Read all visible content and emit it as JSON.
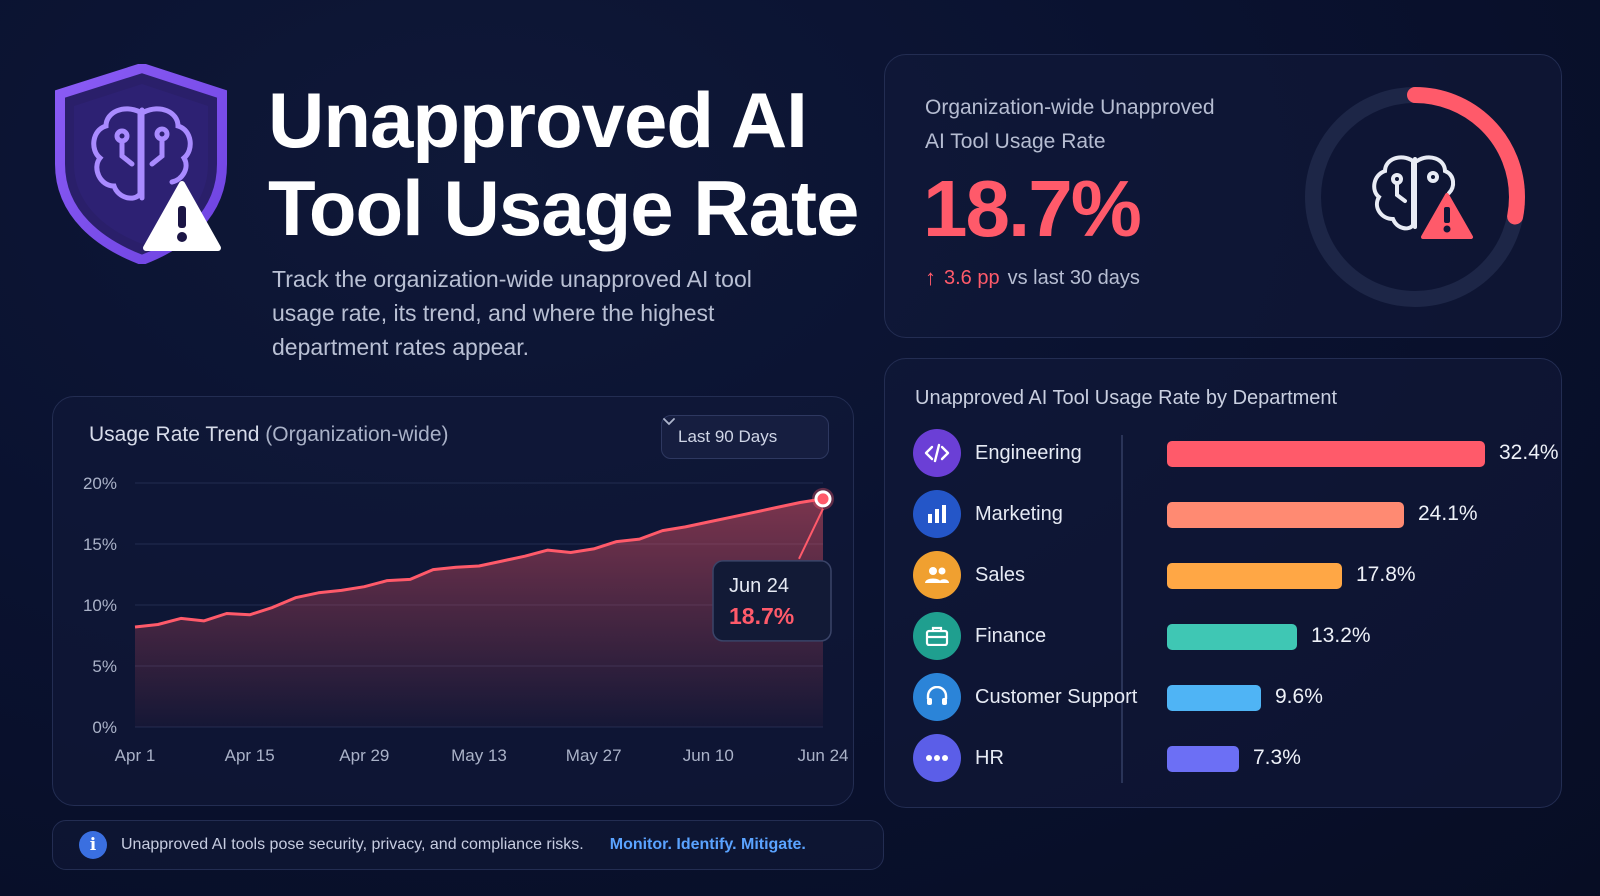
{
  "hero": {
    "title_line1": "Unapproved AI",
    "title_line2": "Tool Usage Rate",
    "subtitle": "Track the organization-wide unapproved AI tool usage rate, its trend, and where the highest department rates appear.",
    "icon": "shield-brain-warning-icon"
  },
  "kpi": {
    "label_line1": "Organization-wide Unapproved",
    "label_line2": "AI Tool Usage Rate",
    "value": "18.7%",
    "delta_value": "3.6 pp",
    "delta_text": "vs last 30 days",
    "delta_icon": "arrow-up-icon",
    "ring_fraction": 0.187,
    "colors": {
      "accent": "#ff5a6a",
      "track": "#1d2647"
    }
  },
  "trend": {
    "title": "Usage Rate Trend",
    "title_suffix": "(Organization-wide)",
    "range_label": "Last 90 Days",
    "tooltip": {
      "date": "Jun 24",
      "value": "18.7%"
    }
  },
  "chart_data": {
    "type": "area",
    "title": "Usage Rate Trend (Organization-wide)",
    "xlabel": "",
    "ylabel": "",
    "x_ticks": [
      "Apr 1",
      "Apr 15",
      "Apr 29",
      "May 13",
      "May 27",
      "Jun 10",
      "Jun 24"
    ],
    "y_ticks": [
      "0%",
      "5%",
      "10%",
      "15%",
      "20%"
    ],
    "ylim": [
      0,
      20
    ],
    "grid": true,
    "series": [
      {
        "color": "#ff5a6a",
        "points": [
          [
            "Apr 1",
            8.2
          ],
          [
            "Apr 4",
            8.4
          ],
          [
            "Apr 7",
            8.9
          ],
          [
            "Apr 10",
            8.7
          ],
          [
            "Apr 13",
            9.3
          ],
          [
            "Apr 15",
            9.2
          ],
          [
            "Apr 18",
            9.8
          ],
          [
            "Apr 21",
            10.6
          ],
          [
            "Apr 24",
            11.0
          ],
          [
            "Apr 27",
            11.2
          ],
          [
            "Apr 29",
            11.5
          ],
          [
            "May 2",
            12.0
          ],
          [
            "May 5",
            12.1
          ],
          [
            "May 8",
            12.9
          ],
          [
            "May 11",
            13.1
          ],
          [
            "May 13",
            13.2
          ],
          [
            "May 16",
            13.6
          ],
          [
            "May 19",
            14.0
          ],
          [
            "May 22",
            14.5
          ],
          [
            "May 25",
            14.3
          ],
          [
            "May 27",
            14.6
          ],
          [
            "May 30",
            15.2
          ],
          [
            "Jun 2",
            15.4
          ],
          [
            "Jun 5",
            16.1
          ],
          [
            "Jun 8",
            16.4
          ],
          [
            "Jun 10",
            16.8
          ],
          [
            "Jun 13",
            17.2
          ],
          [
            "Jun 16",
            17.6
          ],
          [
            "Jun 19",
            18.0
          ],
          [
            "Jun 22",
            18.4
          ],
          [
            "Jun 24",
            18.7
          ]
        ]
      }
    ],
    "highlight": {
      "x": "Jun 24",
      "y": 18.7
    }
  },
  "departments": {
    "title": "Unapproved AI Tool Usage Rate by Department",
    "max": 32.4,
    "items": [
      {
        "name": "Engineering",
        "value": 32.4,
        "label": "32.4%",
        "color": "#ff5a6a",
        "icon_bg": "#6b3fd6",
        "icon": "code-icon"
      },
      {
        "name": "Marketing",
        "value": 24.1,
        "label": "24.1%",
        "color": "#ff8a72",
        "icon_bg": "#2456c8",
        "icon": "bar-chart-icon"
      },
      {
        "name": "Sales",
        "value": 17.8,
        "label": "17.8%",
        "color": "#ffa745",
        "icon_bg": "#f0a030",
        "icon": "people-icon"
      },
      {
        "name": "Finance",
        "value": 13.2,
        "label": "13.2%",
        "color": "#3fc7b4",
        "icon_bg": "#1f9f8f",
        "icon": "briefcase-icon"
      },
      {
        "name": "Customer Support",
        "value": 9.6,
        "label": "9.6%",
        "color": "#4fb4f5",
        "icon_bg": "#2b84d8",
        "icon": "headset-icon"
      },
      {
        "name": "HR",
        "value": 7.3,
        "label": "7.3%",
        "color": "#6c6ff5",
        "icon_bg": "#5b5ee8",
        "icon": "more-dots-icon"
      }
    ]
  },
  "footer": {
    "text": "Unapproved AI tools pose security, privacy, and compliance risks.",
    "cta": "Monitor. Identify. Mitigate.",
    "icon": "info-icon"
  }
}
